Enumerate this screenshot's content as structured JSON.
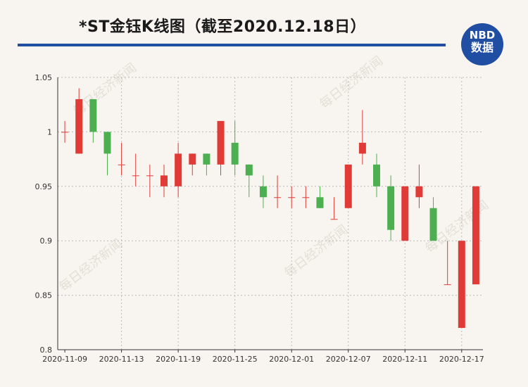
{
  "header": {
    "title": "*ST金钰K线图（截至2020.12.18日）",
    "badge_line1": "NBD",
    "badge_line2": "数据"
  },
  "watermark": "每日经济新闻",
  "colors": {
    "up": "#e03b36",
    "down": "#4caf50",
    "brand": "#1f4ea3"
  },
  "chart_data": {
    "type": "candlestick",
    "title": "*ST金钰K线图（截至2020.12.18日）",
    "ylim": [
      0.8,
      1.05
    ],
    "yticks": [
      0.8,
      0.85,
      0.9,
      0.95,
      1,
      1.05
    ],
    "ytick_labels": [
      "0.8",
      "0.85",
      "0.9",
      "0.95",
      "1",
      "1.05"
    ],
    "xtick_labels": [
      "2020-11-09",
      "2020-11-13",
      "2020-11-19",
      "2020-11-25",
      "2020-12-01",
      "2020-12-07",
      "2020-12-11",
      "2020-12-17"
    ],
    "grid": true,
    "candles": [
      {
        "date": "2020-11-09",
        "open": 1.0,
        "close": 1.0,
        "high": 1.01,
        "low": 0.99
      },
      {
        "date": "2020-11-10",
        "open": 0.98,
        "close": 1.03,
        "high": 1.04,
        "low": 0.98
      },
      {
        "date": "2020-11-11",
        "open": 1.03,
        "close": 1.0,
        "high": 1.03,
        "low": 0.99
      },
      {
        "date": "2020-11-12",
        "open": 1.0,
        "close": 0.98,
        "high": 1.0,
        "low": 0.96
      },
      {
        "date": "2020-11-13",
        "open": 0.97,
        "close": 0.97,
        "high": 0.99,
        "low": 0.96
      },
      {
        "date": "2020-11-16",
        "open": 0.96,
        "close": 0.96,
        "high": 0.98,
        "low": 0.95
      },
      {
        "date": "2020-11-17",
        "open": 0.96,
        "close": 0.96,
        "high": 0.97,
        "low": 0.94
      },
      {
        "date": "2020-11-18",
        "open": 0.95,
        "close": 0.96,
        "high": 0.97,
        "low": 0.94
      },
      {
        "date": "2020-11-19",
        "open": 0.95,
        "close": 0.98,
        "high": 0.99,
        "low": 0.94
      },
      {
        "date": "2020-11-20",
        "open": 0.97,
        "close": 0.98,
        "high": 0.98,
        "low": 0.96
      },
      {
        "date": "2020-11-23",
        "open": 0.98,
        "close": 0.97,
        "high": 0.98,
        "low": 0.96
      },
      {
        "date": "2020-11-24",
        "open": 0.97,
        "close": 1.01,
        "high": 1.01,
        "low": 0.96
      },
      {
        "date": "2020-11-25",
        "open": 0.99,
        "close": 0.97,
        "high": 1.01,
        "low": 0.96
      },
      {
        "date": "2020-11-26",
        "open": 0.97,
        "close": 0.96,
        "high": 0.97,
        "low": 0.94
      },
      {
        "date": "2020-11-27",
        "open": 0.95,
        "close": 0.94,
        "high": 0.96,
        "low": 0.93
      },
      {
        "date": "2020-11-30",
        "open": 0.94,
        "close": 0.94,
        "high": 0.96,
        "low": 0.93
      },
      {
        "date": "2020-12-01",
        "open": 0.94,
        "close": 0.94,
        "high": 0.95,
        "low": 0.93
      },
      {
        "date": "2020-12-02",
        "open": 0.94,
        "close": 0.94,
        "high": 0.95,
        "low": 0.93
      },
      {
        "date": "2020-12-03",
        "open": 0.94,
        "close": 0.93,
        "high": 0.95,
        "low": 0.93
      },
      {
        "date": "2020-12-04",
        "open": 0.92,
        "close": 0.92,
        "high": 0.94,
        "low": 0.92
      },
      {
        "date": "2020-12-07",
        "open": 0.93,
        "close": 0.97,
        "high": 0.97,
        "low": 0.93
      },
      {
        "date": "2020-12-08",
        "open": 0.98,
        "close": 0.99,
        "high": 1.02,
        "low": 0.97
      },
      {
        "date": "2020-12-09",
        "open": 0.97,
        "close": 0.95,
        "high": 0.98,
        "low": 0.94
      },
      {
        "date": "2020-12-10",
        "open": 0.95,
        "close": 0.91,
        "high": 0.96,
        "low": 0.9
      },
      {
        "date": "2020-12-11",
        "open": 0.9,
        "close": 0.95,
        "high": 0.95,
        "low": 0.9
      },
      {
        "date": "2020-12-14",
        "open": 0.94,
        "close": 0.95,
        "high": 0.97,
        "low": 0.93
      },
      {
        "date": "2020-12-15",
        "open": 0.93,
        "close": 0.9,
        "high": 0.94,
        "low": 0.9
      },
      {
        "date": "2020-12-16",
        "open": 0.86,
        "close": 0.86,
        "high": 0.9,
        "low": 0.86
      },
      {
        "date": "2020-12-17",
        "open": 0.82,
        "close": 0.9,
        "high": 0.9,
        "low": 0.82
      },
      {
        "date": "2020-12-18",
        "open": 0.86,
        "close": 0.95,
        "high": 0.95,
        "low": 0.86
      }
    ]
  }
}
